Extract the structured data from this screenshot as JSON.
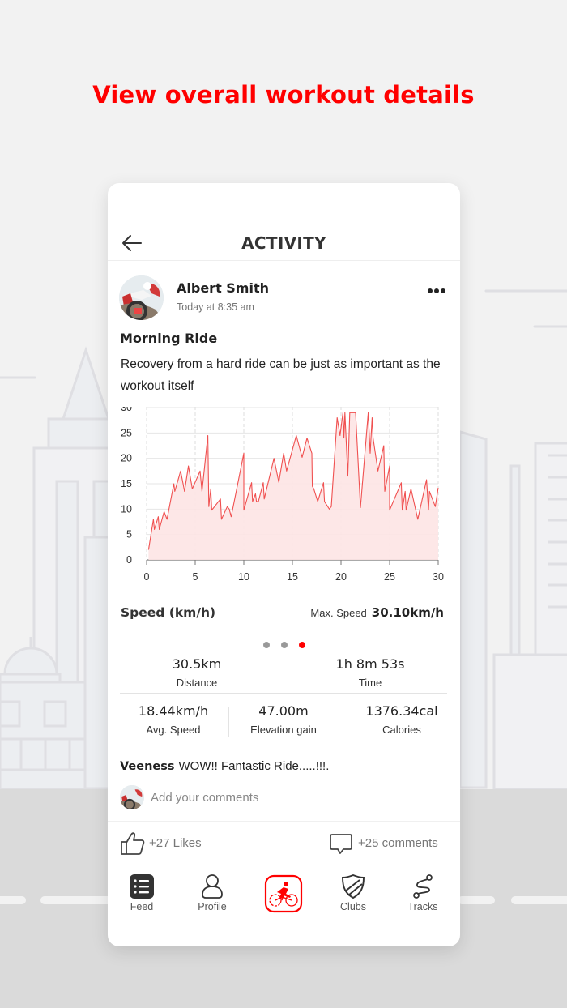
{
  "promo": {
    "title": "View overall workout details"
  },
  "colors": {
    "accent": "#ff0000",
    "chart_line": "#f05050",
    "chart_fill": "#fde4e4",
    "background": "#f2f2f2"
  },
  "header": {
    "title": "ACTIVITY",
    "back_icon": "arrow-left-icon"
  },
  "post": {
    "author": "Albert Smith",
    "time": "Today at 8:35 am",
    "title": "Morning  Ride",
    "description": "Recovery from a hard ride can be just as important as the workout itself",
    "more_icon": "more-horizontal-icon"
  },
  "chart_data": {
    "type": "area",
    "title": "Speed (km/h)",
    "xlabel": "",
    "ylabel": "Speed (km/h)",
    "xlim": [
      0,
      30
    ],
    "ylim": [
      0,
      30
    ],
    "x_ticks": [
      0,
      5,
      10,
      15,
      20,
      25,
      30
    ],
    "y_ticks": [
      0,
      5,
      10,
      15,
      20,
      25,
      30
    ],
    "grid": true,
    "legend": "none",
    "series": [
      {
        "name": "Speed",
        "x": [
          0.2,
          0.7,
          0.8,
          1.2,
          1.3,
          1.8,
          2.1,
          2.8,
          2.9,
          3.5,
          3.9,
          4.3,
          4.7,
          5.5,
          5.7,
          6.3,
          6.4,
          6.6,
          6.7,
          7.6,
          7.7,
          8.3,
          8.5,
          8.7,
          10.0,
          10.0,
          10.8,
          10.9,
          11.2,
          11.3,
          11.5,
          12.0,
          12.1,
          13.1,
          13.6,
          14.1,
          14.4,
          15.4,
          16.0,
          16.5,
          17.0,
          17.05,
          17.2,
          17.6,
          18.2,
          18.3,
          18.8,
          19.0,
          19.6,
          19.9,
          20.2,
          20.3,
          20.4,
          20.7,
          20.9,
          21.5,
          22.0,
          22.8,
          23.0,
          23.2,
          23.3,
          23.8,
          24.4,
          24.5,
          25.0,
          25.0,
          26.2,
          26.3,
          26.6,
          26.7,
          27.2,
          27.9,
          28.8,
          29.0,
          29.1,
          29.7,
          30.0
        ],
        "values": [
          2,
          8,
          6,
          8.5,
          6,
          9.5,
          8,
          15,
          13.5,
          17.5,
          13.5,
          18.5,
          14,
          17.5,
          13.5,
          24.5,
          10.5,
          14,
          9.8,
          12,
          8,
          10.5,
          10,
          8.5,
          21,
          9.8,
          15.2,
          11.5,
          13,
          11.5,
          11.5,
          15.2,
          12,
          20,
          15.3,
          21,
          17.5,
          24.5,
          20.2,
          24,
          21,
          14.5,
          14,
          11.5,
          15.2,
          11.5,
          10,
          10.5,
          28,
          24.5,
          29,
          24,
          29,
          16.5,
          29,
          29,
          10.3,
          29,
          21,
          28,
          24,
          17.5,
          22.5,
          13.5,
          18.5,
          9.8,
          15.2,
          9.8,
          13.5,
          9.8,
          14,
          8,
          15.8,
          9.8,
          13.5,
          10.5,
          14.2
        ]
      }
    ],
    "summary": {
      "label": "Max. Speed",
      "value": "30.10km/h"
    }
  },
  "pager": {
    "count": 3,
    "active_index": 2
  },
  "stats": {
    "distance": {
      "value": "30.5km",
      "label": "Distance"
    },
    "time": {
      "value": "1h 8m 53s",
      "label": "Time"
    },
    "avg_speed": {
      "value": "18.44km/h",
      "label": "Avg. Speed"
    },
    "elevation": {
      "value": "47.00m",
      "label": "Elevation gain"
    },
    "calories": {
      "value": "1376.34cal",
      "label": "Calories"
    }
  },
  "comment": {
    "author": "Veeness",
    "text": "WOW!! Fantastic Ride.....!!!."
  },
  "add_comment": {
    "placeholder": "Add your comments"
  },
  "engagement": {
    "likes": "+27 Likes",
    "comments": "+25 comments"
  },
  "tabs": [
    {
      "label": "Feed",
      "icon": "list-icon"
    },
    {
      "label": "Profile",
      "icon": "person-icon"
    },
    {
      "label": "",
      "icon": "cyclist-icon",
      "active": true
    },
    {
      "label": "Clubs",
      "icon": "shield-icon"
    },
    {
      "label": "Tracks",
      "icon": "route-icon"
    }
  ]
}
